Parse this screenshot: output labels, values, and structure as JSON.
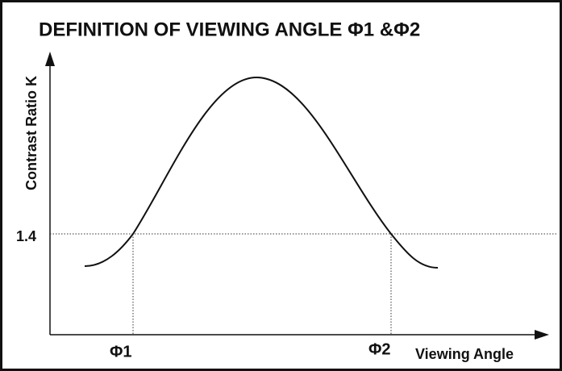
{
  "title": "DEFINITION OF VIEWING ANGLE Φ1 &Φ2",
  "y_axis_label": "Contrast Ratio K",
  "x_axis_label": "Viewing Angle",
  "threshold_label": "1.4",
  "angle_labels": [
    "Φ1",
    "Φ2"
  ]
}
